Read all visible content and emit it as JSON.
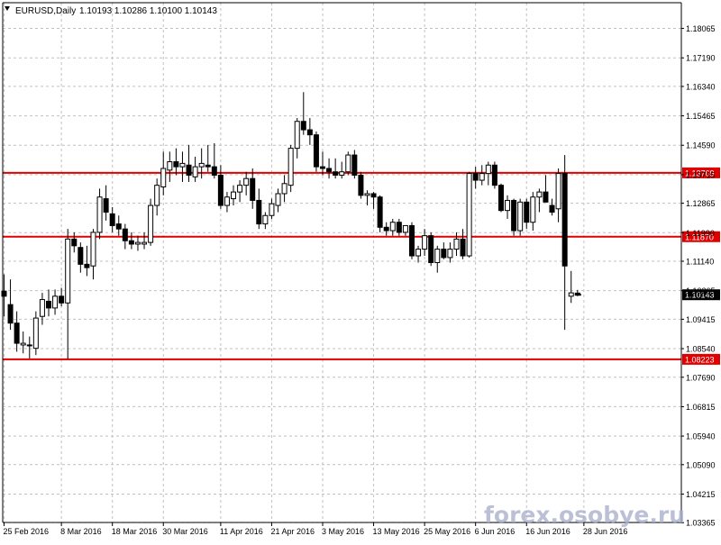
{
  "header": {
    "symbol": "EURUSD,Daily",
    "ohlc": "1.10193 1.10286 1.10100 1.10143"
  },
  "watermark": "forex.osobye.ru",
  "colors": {
    "background": "#ffffff",
    "grid": "#c0c0c0",
    "candle": "#000000",
    "level_line": "#e00000",
    "level_label_bg": "#e00000",
    "level_label_text": "#ffffff",
    "price_label_bg": "#000000",
    "price_label_text": "#ffffff",
    "watermark": "#aab0cc"
  },
  "chart_data": {
    "type": "candlestick",
    "ylim": [
      1.0337,
      1.1883
    ],
    "grid": true,
    "yticks": [
      "1.18065",
      "1.17190",
      "1.16340",
      "1.15465",
      "1.14590",
      "1.13715",
      "1.12865",
      "1.11990",
      "1.11140",
      "1.10265",
      "1.09415",
      "1.08540",
      "1.07690",
      "1.06815",
      "1.05940",
      "1.05090",
      "1.04215",
      "1.03365"
    ],
    "xticks": [
      {
        "label": "25 Feb 2016",
        "index": 0
      },
      {
        "label": "8 Mar 2016",
        "index": 9
      },
      {
        "label": "18 Mar 2016",
        "index": 17
      },
      {
        "label": "30 Mar 2016",
        "index": 25
      },
      {
        "label": "11 Apr 2016",
        "index": 34
      },
      {
        "label": "21 Apr 2016",
        "index": 42
      },
      {
        "label": "3 May 2016",
        "index": 50
      },
      {
        "label": "13 May 2016",
        "index": 58
      },
      {
        "label": "25 May 2016",
        "index": 66
      },
      {
        "label": "6 Jun 2016",
        "index": 74
      },
      {
        "label": "16 Jun 2016",
        "index": 82
      },
      {
        "label": "28 Jun 2016",
        "index": 91
      }
    ],
    "levels": [
      {
        "label": "1.13769",
        "value": 1.13769
      },
      {
        "label": "1.11870",
        "value": 1.1187
      },
      {
        "label": "1.08223",
        "value": 1.08223
      }
    ],
    "current_price": {
      "label": "1.10143",
      "value": 1.10143
    },
    "candles": [
      {
        "o": 1.1025,
        "h": 1.1075,
        "l": 1.095,
        "c": 1.101
      },
      {
        "o": 1.0985,
        "h": 1.106,
        "l": 1.091,
        "c": 1.093
      },
      {
        "o": 1.093,
        "h": 1.0965,
        "l": 1.0845,
        "c": 1.087
      },
      {
        "o": 1.0865,
        "h": 1.0905,
        "l": 1.084,
        "c": 1.087
      },
      {
        "o": 1.0865,
        "h": 1.089,
        "l": 1.0825,
        "c": 1.0865
      },
      {
        "o": 1.0855,
        "h": 1.0965,
        "l": 1.0835,
        "c": 1.0945
      },
      {
        "o": 1.095,
        "h": 1.102,
        "l": 1.0925,
        "c": 1.1
      },
      {
        "o": 1.0995,
        "h": 1.103,
        "l": 1.095,
        "c": 1.0975
      },
      {
        "o": 1.0975,
        "h": 1.103,
        "l": 1.0955,
        "c": 1.101
      },
      {
        "o": 1.101,
        "h": 1.1035,
        "l": 1.098,
        "c": 1.099
      },
      {
        "o": 1.099,
        "h": 1.121,
        "l": 1.0823,
        "c": 1.118
      },
      {
        "o": 1.118,
        "h": 1.12,
        "l": 1.114,
        "c": 1.116
      },
      {
        "o": 1.1155,
        "h": 1.117,
        "l": 1.108,
        "c": 1.1105
      },
      {
        "o": 1.1105,
        "h": 1.116,
        "l": 1.107,
        "c": 1.1095
      },
      {
        "o": 1.11,
        "h": 1.121,
        "l": 1.106,
        "c": 1.12
      },
      {
        "o": 1.12,
        "h": 1.133,
        "l": 1.118,
        "c": 1.1305
      },
      {
        "o": 1.13,
        "h": 1.134,
        "l": 1.1235,
        "c": 1.126
      },
      {
        "o": 1.1255,
        "h": 1.1275,
        "l": 1.12,
        "c": 1.122
      },
      {
        "o": 1.1225,
        "h": 1.125,
        "l": 1.119,
        "c": 1.121
      },
      {
        "o": 1.121,
        "h": 1.1225,
        "l": 1.115,
        "c": 1.1175
      },
      {
        "o": 1.1175,
        "h": 1.12,
        "l": 1.115,
        "c": 1.1165
      },
      {
        "o": 1.1165,
        "h": 1.119,
        "l": 1.1145,
        "c": 1.117
      },
      {
        "o": 1.1165,
        "h": 1.12,
        "l": 1.115,
        "c": 1.117
      },
      {
        "o": 1.117,
        "h": 1.13,
        "l": 1.116,
        "c": 1.128
      },
      {
        "o": 1.128,
        "h": 1.136,
        "l": 1.125,
        "c": 1.134
      },
      {
        "o": 1.1335,
        "h": 1.144,
        "l": 1.131,
        "c": 1.139
      },
      {
        "o": 1.1385,
        "h": 1.144,
        "l": 1.135,
        "c": 1.141
      },
      {
        "o": 1.141,
        "h": 1.145,
        "l": 1.137,
        "c": 1.1395
      },
      {
        "o": 1.1395,
        "h": 1.144,
        "l": 1.135,
        "c": 1.1405
      },
      {
        "o": 1.14,
        "h": 1.146,
        "l": 1.135,
        "c": 1.137
      },
      {
        "o": 1.1365,
        "h": 1.1425,
        "l": 1.135,
        "c": 1.1395
      },
      {
        "o": 1.1395,
        "h": 1.145,
        "l": 1.136,
        "c": 1.1405
      },
      {
        "o": 1.14,
        "h": 1.146,
        "l": 1.138,
        "c": 1.1395
      },
      {
        "o": 1.1395,
        "h": 1.1465,
        "l": 1.136,
        "c": 1.137
      },
      {
        "o": 1.137,
        "h": 1.14,
        "l": 1.127,
        "c": 1.128
      },
      {
        "o": 1.128,
        "h": 1.132,
        "l": 1.126,
        "c": 1.1305
      },
      {
        "o": 1.13,
        "h": 1.134,
        "l": 1.128,
        "c": 1.132
      },
      {
        "o": 1.132,
        "h": 1.1355,
        "l": 1.129,
        "c": 1.134
      },
      {
        "o": 1.134,
        "h": 1.138,
        "l": 1.131,
        "c": 1.136
      },
      {
        "o": 1.136,
        "h": 1.139,
        "l": 1.127,
        "c": 1.1295
      },
      {
        "o": 1.1295,
        "h": 1.133,
        "l": 1.121,
        "c": 1.1225
      },
      {
        "o": 1.1225,
        "h": 1.126,
        "l": 1.121,
        "c": 1.125
      },
      {
        "o": 1.125,
        "h": 1.13,
        "l": 1.124,
        "c": 1.1285
      },
      {
        "o": 1.128,
        "h": 1.133,
        "l": 1.126,
        "c": 1.1315
      },
      {
        "o": 1.1315,
        "h": 1.137,
        "l": 1.129,
        "c": 1.1345
      },
      {
        "o": 1.134,
        "h": 1.146,
        "l": 1.132,
        "c": 1.145
      },
      {
        "o": 1.145,
        "h": 1.154,
        "l": 1.142,
        "c": 1.153
      },
      {
        "o": 1.153,
        "h": 1.1617,
        "l": 1.149,
        "c": 1.1505
      },
      {
        "o": 1.1505,
        "h": 1.154,
        "l": 1.146,
        "c": 1.149
      },
      {
        "o": 1.149,
        "h": 1.15,
        "l": 1.138,
        "c": 1.1395
      },
      {
        "o": 1.1395,
        "h": 1.144,
        "l": 1.137,
        "c": 1.139
      },
      {
        "o": 1.139,
        "h": 1.142,
        "l": 1.136,
        "c": 1.138
      },
      {
        "o": 1.138,
        "h": 1.142,
        "l": 1.136,
        "c": 1.137
      },
      {
        "o": 1.137,
        "h": 1.141,
        "l": 1.136,
        "c": 1.138
      },
      {
        "o": 1.138,
        "h": 1.144,
        "l": 1.137,
        "c": 1.143
      },
      {
        "o": 1.143,
        "h": 1.1445,
        "l": 1.136,
        "c": 1.137
      },
      {
        "o": 1.137,
        "h": 1.138,
        "l": 1.13,
        "c": 1.131
      },
      {
        "o": 1.131,
        "h": 1.1325,
        "l": 1.128,
        "c": 1.1315
      },
      {
        "o": 1.1315,
        "h": 1.132,
        "l": 1.127,
        "c": 1.1305
      },
      {
        "o": 1.1305,
        "h": 1.131,
        "l": 1.12,
        "c": 1.1215
      },
      {
        "o": 1.1215,
        "h": 1.123,
        "l": 1.119,
        "c": 1.1205
      },
      {
        "o": 1.1205,
        "h": 1.124,
        "l": 1.119,
        "c": 1.123
      },
      {
        "o": 1.123,
        "h": 1.124,
        "l": 1.119,
        "c": 1.12
      },
      {
        "o": 1.12,
        "h": 1.122,
        "l": 1.119,
        "c": 1.122
      },
      {
        "o": 1.122,
        "h": 1.123,
        "l": 1.112,
        "c": 1.113
      },
      {
        "o": 1.113,
        "h": 1.116,
        "l": 1.111,
        "c": 1.115
      },
      {
        "o": 1.115,
        "h": 1.121,
        "l": 1.113,
        "c": 1.119
      },
      {
        "o": 1.119,
        "h": 1.12,
        "l": 1.11,
        "c": 1.111
      },
      {
        "o": 1.111,
        "h": 1.116,
        "l": 1.108,
        "c": 1.115
      },
      {
        "o": 1.115,
        "h": 1.117,
        "l": 1.112,
        "c": 1.1125
      },
      {
        "o": 1.1125,
        "h": 1.117,
        "l": 1.111,
        "c": 1.115
      },
      {
        "o": 1.115,
        "h": 1.12,
        "l": 1.113,
        "c": 1.118
      },
      {
        "o": 1.118,
        "h": 1.121,
        "l": 1.112,
        "c": 1.113
      },
      {
        "o": 1.113,
        "h": 1.138,
        "l": 1.1125,
        "c": 1.1375
      },
      {
        "o": 1.1375,
        "h": 1.1395,
        "l": 1.133,
        "c": 1.1355
      },
      {
        "o": 1.1355,
        "h": 1.14,
        "l": 1.134,
        "c": 1.1375
      },
      {
        "o": 1.1375,
        "h": 1.141,
        "l": 1.134,
        "c": 1.14
      },
      {
        "o": 1.14,
        "h": 1.141,
        "l": 1.133,
        "c": 1.134
      },
      {
        "o": 1.134,
        "h": 1.1345,
        "l": 1.126,
        "c": 1.1265
      },
      {
        "o": 1.1265,
        "h": 1.131,
        "l": 1.124,
        "c": 1.1295
      },
      {
        "o": 1.1295,
        "h": 1.13,
        "l": 1.119,
        "c": 1.1205
      },
      {
        "o": 1.1205,
        "h": 1.13,
        "l": 1.119,
        "c": 1.129
      },
      {
        "o": 1.129,
        "h": 1.13,
        "l": 1.121,
        "c": 1.123
      },
      {
        "o": 1.123,
        "h": 1.132,
        "l": 1.1205,
        "c": 1.1305
      },
      {
        "o": 1.1305,
        "h": 1.133,
        "l": 1.126,
        "c": 1.132
      },
      {
        "o": 1.132,
        "h": 1.137,
        "l": 1.129,
        "c": 1.129
      },
      {
        "o": 1.128,
        "h": 1.13,
        "l": 1.125,
        "c": 1.126
      },
      {
        "o": 1.127,
        "h": 1.139,
        "l": 1.123,
        "c": 1.1375
      },
      {
        "o": 1.1375,
        "h": 1.143,
        "l": 1.091,
        "c": 1.11
      },
      {
        "o": 1.101,
        "h": 1.1085,
        "l": 1.099,
        "c": 1.102
      },
      {
        "o": 1.10193,
        "h": 1.10286,
        "l": 1.101,
        "c": 1.10143
      }
    ]
  }
}
